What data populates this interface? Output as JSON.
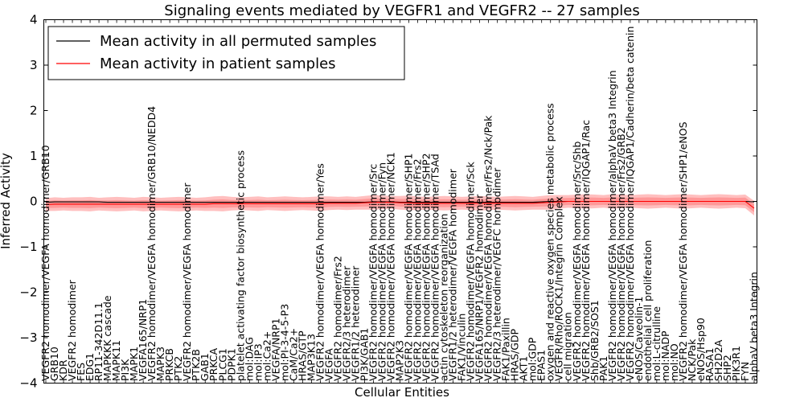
{
  "chart_data": {
    "type": "line",
    "title": "Signaling events mediated by VEGFR1 and VEGFR2 -- 27 samples",
    "xlabel": "Cellular Entities",
    "ylabel": "Inferred Activity",
    "ylim": [
      -4,
      4
    ],
    "yticks": [
      "−4",
      "−3",
      "−2",
      "−1",
      "0",
      "1",
      "2",
      "3",
      "4"
    ],
    "legend": {
      "placement": "top-left",
      "entries": [
        {
          "label": "Mean activity in all permuted samples",
          "color": "#000000"
        },
        {
          "label": "Mean activity in patient samples",
          "color": "#ff0000"
        }
      ]
    },
    "categories": [
      "VEGFR2 homodimer/VEGFA homodimer/GRB10",
      "GRB10",
      "KDR",
      "VEGFR2 homodimer",
      "FES",
      "EDG1",
      "RP11-342D11.1",
      "MAPKKK cascade",
      "MAPK11",
      "PI3K",
      "MAPK1",
      "VEGFA165/NRP1",
      "VEGFR2 homodimer/VEGFA homodimer/GRB10/NEDD4",
      "MAPK3",
      "PRKCB",
      "PTK2",
      "VEGFR2 homodimer/VEGFA homodimer",
      "PTK2B",
      "GAB1",
      "PRKCA",
      "PLCG1",
      "PDPK1",
      "platelet activating factor biosynthetic process",
      "mol:DAG",
      "mol:IP3",
      "mol:Ca2+",
      "VEGFA/NRP1",
      "mol:PI-3-4-5-P3",
      "CaM/Ca2+",
      "HRAS/GTP",
      "MAP3K13",
      "VEGFR2 homodimer/VEGFA homodimer/Yes",
      "VEGFA",
      "VEGFR2 homodimer/Frs2",
      "VEGFR2/3 heterodimer",
      "VEGFR1/2 heterodimer",
      "PI3K/GAB1",
      "VEGFR2 homodimer/VEGFA homodimer/Src",
      "VEGFR2 homodimer/VEGFA homodimer/Fyn",
      "VEGFR2 homodimer/VEGFA homodimer/NCK1",
      "MAP2K3",
      "VEGFR2 homodimer/VEGFA homodimer/SHP1",
      "VEGFR2 homodimer/VEGFA homodimer/Frs2",
      "VEGFR2 homodimer/VEGFA homodimer/SHP2",
      "VEGFR2 homodimer/VEGFA homodimer/TSAd",
      "actin cytoskeleton reorganization",
      "VEGFR1/2 heterodimer/VEGFA homodimer",
      "FAK1/Vinculin",
      "VEGFR2 homodimer/VEGFA homodimer/Sck",
      "VEGFA165/NRP1/VEGFR2 homodimer",
      "VEGFR2 homodimer/VEGFA homodimer/Frs2/Nck/Pak",
      "VEGFR2/3 heterodimer/VEGFC homodimer",
      "FAK1/Paxillin",
      "HRAS/GDP",
      "AKT1",
      "mol:GDP",
      "EPAS1",
      "oxygen and reactive oxygen species metabolic process",
      "VEGFR/Rho/ROCK1/Integrin Complex",
      "cell migration",
      "VEGFR2 homodimer/VEGFA homodimer/Src/Shb",
      "VEGFR2 homodimer/VEGFA homodimer/IQGAP1/Rac",
      "Shb/GRB2/SOS1",
      "PAK1",
      "VEGFR2 homodimer/VEGFA homodimer/alphaV beta3 Integrin",
      "VEGFR2 homodimer/VEGFA homodimer/Frs2/GRB2",
      "VEGFR2 homodimer/VEGFA homodimer/IQGAP1/Cadherin/beta catenin",
      "eNOS/Caveolin-1",
      "endothelial cell proliferation",
      "mol:L-citrulline",
      "mol:NADP",
      "mol:NO",
      "VEGFR2 homodimer/VEGFA homodimer/SHP1/eNOS",
      "NCK/Pak",
      "eNOS/Hsp90",
      "RASA1",
      "SH2D2A",
      "SHP2",
      "PIK3R1",
      "FYN",
      "alphaV beta3 Integrin"
    ],
    "series": [
      {
        "name": "Mean activity in all permuted samples",
        "values": [
          -0.02,
          -0.01,
          -0.01,
          -0.01,
          -0.01,
          -0.01,
          -0.01,
          -0.02,
          -0.02,
          -0.02,
          -0.02,
          -0.02,
          -0.02,
          -0.02,
          -0.02,
          -0.02,
          -0.02,
          -0.02,
          -0.02,
          -0.02,
          -0.02,
          -0.02,
          -0.02,
          -0.02,
          -0.02,
          -0.02,
          -0.02,
          -0.02,
          -0.02,
          -0.02,
          -0.02,
          -0.02,
          -0.02,
          -0.02,
          -0.02,
          -0.02,
          -0.02,
          -0.01,
          -0.01,
          -0.01,
          -0.02,
          -0.02,
          -0.02,
          -0.02,
          -0.02,
          -0.02,
          -0.02,
          -0.02,
          -0.02,
          -0.02,
          -0.02,
          -0.02,
          -0.02,
          -0.02,
          -0.02,
          -0.02,
          -0.01,
          0.0,
          0.0,
          0.0,
          0.0,
          0.0,
          0.0,
          0.0,
          0.0,
          0.0,
          0.0,
          0.0,
          0.0,
          0.0,
          0.0,
          0.0,
          0.0,
          0.0,
          0.0,
          0.0,
          0.0,
          0.0,
          0.0,
          0.0,
          -0.01
        ]
      },
      {
        "name": "Mean activity in patient samples",
        "values": [
          -0.07,
          -0.06,
          -0.06,
          -0.06,
          -0.06,
          -0.06,
          -0.06,
          -0.06,
          -0.06,
          -0.06,
          -0.06,
          -0.06,
          -0.06,
          -0.06,
          -0.06,
          -0.06,
          -0.06,
          -0.06,
          -0.06,
          -0.05,
          -0.05,
          -0.05,
          -0.05,
          -0.05,
          -0.05,
          -0.05,
          -0.05,
          -0.05,
          -0.05,
          -0.05,
          -0.05,
          -0.05,
          -0.04,
          -0.04,
          -0.04,
          -0.04,
          -0.03,
          -0.02,
          -0.02,
          -0.02,
          -0.03,
          -0.03,
          -0.04,
          -0.04,
          -0.04,
          -0.04,
          -0.04,
          -0.04,
          -0.04,
          -0.04,
          -0.04,
          -0.04,
          -0.04,
          -0.04,
          -0.04,
          -0.04,
          -0.03,
          -0.02,
          -0.01,
          0.0,
          0.0,
          0.0,
          0.0,
          0.0,
          0.0,
          0.0,
          0.0,
          0.0,
          0.0,
          0.0,
          0.0,
          0.0,
          0.0,
          0.0,
          0.0,
          0.0,
          0.0,
          0.0,
          0.0,
          0.0,
          -0.15
        ]
      }
    ],
    "band_halfwidth": [
      0.14,
      0.15,
      0.14,
      0.15,
      0.15,
      0.16,
      0.14,
      0.15,
      0.16,
      0.15,
      0.14,
      0.16,
      0.15,
      0.14,
      0.15,
      0.16,
      0.15,
      0.14,
      0.15,
      0.16,
      0.17,
      0.15,
      0.14,
      0.15,
      0.16,
      0.14,
      0.15,
      0.16,
      0.15,
      0.14,
      0.15,
      0.16,
      0.15,
      0.14,
      0.15,
      0.14,
      0.15,
      0.16,
      0.15,
      0.14,
      0.15,
      0.16,
      0.15,
      0.14,
      0.15,
      0.16,
      0.15,
      0.14,
      0.15,
      0.16,
      0.15,
      0.14,
      0.15,
      0.16,
      0.15,
      0.14,
      0.15,
      0.16,
      0.15,
      0.14,
      0.15,
      0.16,
      0.15,
      0.14,
      0.16,
      0.15,
      0.14,
      0.15,
      0.16,
      0.15,
      0.14,
      0.15,
      0.16,
      0.15,
      0.14,
      0.15,
      0.16,
      0.15,
      0.14,
      0.15,
      0.16
    ],
    "grid": false
  }
}
